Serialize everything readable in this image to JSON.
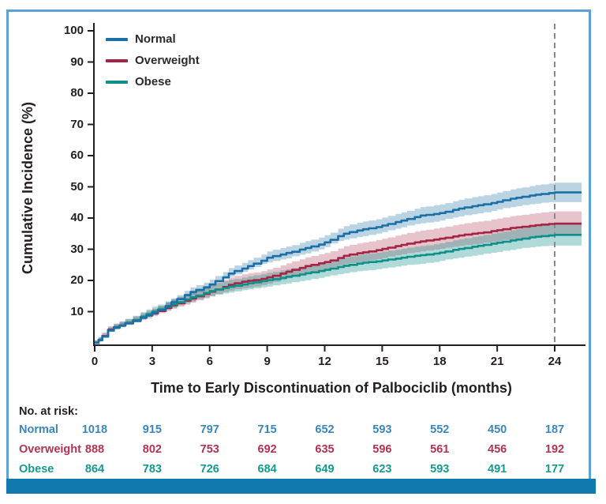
{
  "figure": {
    "border_color": "#5ba3d6",
    "bottom_bar_color": "#1179ad",
    "background": "#ffffff",
    "axis_color": "#231f20",
    "dashed_line_color": "#8a8a8a"
  },
  "chart_data": {
    "type": "line",
    "subtype": "cumulative-incidence-step-curves-with-confidence-bands",
    "title": "",
    "xlabel": "Time to Early Discontinuation of Palbociclib (months)",
    "ylabel": "Cumulative Incidence (%)",
    "xlim": [
      0,
      25.5
    ],
    "ylim": [
      0,
      100
    ],
    "xticks": [
      0,
      3,
      6,
      9,
      12,
      15,
      18,
      21,
      24
    ],
    "yticks": [
      10,
      20,
      30,
      40,
      50,
      60,
      70,
      80,
      90,
      100
    ],
    "grid": false,
    "legend_position": "top-left",
    "reference_line_x": 24,
    "series": [
      {
        "name": "Normal",
        "color": "#1c6fa6",
        "text_color": "#3a86bb",
        "band_opacity": 0.3,
        "band_base": 0.6,
        "band_slope": 0.052,
        "points": [
          [
            0,
            0
          ],
          [
            0.2,
            0.8
          ],
          [
            0.4,
            2
          ],
          [
            0.7,
            4
          ],
          [
            1,
            5
          ],
          [
            1.3,
            5.5
          ],
          [
            1.6,
            6.2
          ],
          [
            2,
            7
          ],
          [
            2.4,
            8
          ],
          [
            2.7,
            8.7
          ],
          [
            3,
            9.6
          ],
          [
            3.3,
            10.5
          ],
          [
            3.7,
            11.8
          ],
          [
            4,
            13
          ],
          [
            4.3,
            14
          ],
          [
            4.7,
            15.3
          ],
          [
            5,
            16.3
          ],
          [
            5.3,
            17
          ],
          [
            5.7,
            17.8
          ],
          [
            6,
            18.7
          ],
          [
            6.3,
            19.8
          ],
          [
            6.7,
            21
          ],
          [
            7,
            22.2
          ],
          [
            7.3,
            23
          ],
          [
            7.7,
            23.8
          ],
          [
            8,
            24.6
          ],
          [
            8.3,
            25.4
          ],
          [
            8.7,
            26.3
          ],
          [
            9,
            27.3
          ],
          [
            9.3,
            27.8
          ],
          [
            9.7,
            28.3
          ],
          [
            10,
            28.8
          ],
          [
            10.3,
            29.2
          ],
          [
            10.7,
            29.9
          ],
          [
            11,
            30.4
          ],
          [
            11.3,
            30.9
          ],
          [
            11.7,
            31.5
          ],
          [
            12,
            32.2
          ],
          [
            12.3,
            33
          ],
          [
            12.7,
            34.2
          ],
          [
            13,
            35
          ],
          [
            13.3,
            35.5
          ],
          [
            13.7,
            36
          ],
          [
            14,
            36.4
          ],
          [
            14.3,
            36.7
          ],
          [
            14.7,
            37.1
          ],
          [
            15,
            37.6
          ],
          [
            15.3,
            38.1
          ],
          [
            15.7,
            38.7
          ],
          [
            16,
            39.2
          ],
          [
            16.3,
            39.7
          ],
          [
            16.7,
            40.3
          ],
          [
            17,
            40.8
          ],
          [
            17.3,
            41
          ],
          [
            17.7,
            41.3
          ],
          [
            18,
            41.6
          ],
          [
            18.3,
            42
          ],
          [
            18.7,
            42.6
          ],
          [
            19,
            43
          ],
          [
            19.3,
            43.4
          ],
          [
            19.7,
            43.8
          ],
          [
            20,
            44.1
          ],
          [
            20.3,
            44.4
          ],
          [
            20.7,
            44.8
          ],
          [
            21,
            45.2
          ],
          [
            21.3,
            45.7
          ],
          [
            21.7,
            46.2
          ],
          [
            22,
            46.5
          ],
          [
            22.3,
            46.8
          ],
          [
            22.7,
            47.2
          ],
          [
            23,
            47.5
          ],
          [
            23.3,
            47.7
          ],
          [
            23.7,
            48
          ],
          [
            24,
            48.2
          ],
          [
            25.4,
            48.2
          ]
        ]
      },
      {
        "name": "Overweight",
        "color": "#a52444",
        "text_color": "#b13251",
        "band_opacity": 0.27,
        "band_base": 0.8,
        "band_slope": 0.082,
        "points": [
          [
            0,
            0
          ],
          [
            0.2,
            1
          ],
          [
            0.4,
            2.3
          ],
          [
            0.7,
            4.2
          ],
          [
            1,
            5
          ],
          [
            1.3,
            5.6
          ],
          [
            1.6,
            6.3
          ],
          [
            2,
            7.1
          ],
          [
            2.4,
            8.1
          ],
          [
            2.7,
            8.8
          ],
          [
            3,
            9.4
          ],
          [
            3.3,
            10.2
          ],
          [
            3.7,
            11.2
          ],
          [
            4,
            12
          ],
          [
            4.3,
            12.7
          ],
          [
            4.7,
            13.5
          ],
          [
            5,
            14.2
          ],
          [
            5.3,
            14.9
          ],
          [
            5.7,
            15.7
          ],
          [
            6,
            16.4
          ],
          [
            6.3,
            17.1
          ],
          [
            6.7,
            17.9
          ],
          [
            7,
            18.6
          ],
          [
            7.3,
            19.1
          ],
          [
            7.7,
            19.6
          ],
          [
            8,
            19.9
          ],
          [
            8.3,
            20.1
          ],
          [
            8.7,
            20.5
          ],
          [
            9,
            21
          ],
          [
            9.3,
            21.5
          ],
          [
            9.7,
            22.2
          ],
          [
            10,
            22.8
          ],
          [
            10.3,
            23.4
          ],
          [
            10.7,
            24
          ],
          [
            11,
            24.6
          ],
          [
            11.3,
            25
          ],
          [
            11.7,
            25.5
          ],
          [
            12,
            25.9
          ],
          [
            12.3,
            26.4
          ],
          [
            12.7,
            27.2
          ],
          [
            13,
            27.9
          ],
          [
            13.3,
            28.3
          ],
          [
            13.7,
            28.7
          ],
          [
            14,
            29
          ],
          [
            14.3,
            29.3
          ],
          [
            14.7,
            29.7
          ],
          [
            15,
            30.1
          ],
          [
            15.3,
            30.5
          ],
          [
            15.7,
            31
          ],
          [
            16,
            31.4
          ],
          [
            16.3,
            31.8
          ],
          [
            16.7,
            32.2
          ],
          [
            17,
            32.5
          ],
          [
            17.3,
            32.8
          ],
          [
            17.7,
            33.1
          ],
          [
            18,
            33.4
          ],
          [
            18.3,
            33.7
          ],
          [
            18.7,
            34.1
          ],
          [
            19,
            34.4
          ],
          [
            19.3,
            34.7
          ],
          [
            19.7,
            35
          ],
          [
            20,
            35.2
          ],
          [
            20.3,
            35.4
          ],
          [
            20.7,
            35.8
          ],
          [
            21,
            36.1
          ],
          [
            21.3,
            36.4
          ],
          [
            21.7,
            36.8
          ],
          [
            22,
            37
          ],
          [
            22.3,
            37.2
          ],
          [
            22.7,
            37.5
          ],
          [
            23,
            37.7
          ],
          [
            23.3,
            37.9
          ],
          [
            23.7,
            38.1
          ],
          [
            24,
            38.2
          ],
          [
            25.4,
            38.2
          ]
        ]
      },
      {
        "name": "Obese",
        "color": "#0d9089",
        "text_color": "#14998f",
        "band_opacity": 0.33,
        "band_base": 0.8,
        "band_slope": 0.076,
        "points": [
          [
            0,
            0
          ],
          [
            0.2,
            0.9
          ],
          [
            0.4,
            2
          ],
          [
            0.7,
            3.9
          ],
          [
            1,
            4.8
          ],
          [
            1.3,
            5.6
          ],
          [
            1.6,
            6.4
          ],
          [
            2,
            7.3
          ],
          [
            2.4,
            8.4
          ],
          [
            2.7,
            9.2
          ],
          [
            3,
            10
          ],
          [
            3.3,
            10.7
          ],
          [
            3.7,
            11.6
          ],
          [
            4,
            12.3
          ],
          [
            4.3,
            13
          ],
          [
            4.7,
            13.9
          ],
          [
            5,
            14.6
          ],
          [
            5.3,
            15.2
          ],
          [
            5.7,
            16
          ],
          [
            6,
            16.6
          ],
          [
            6.3,
            17.1
          ],
          [
            6.7,
            17.6
          ],
          [
            7,
            18
          ],
          [
            7.3,
            18.3
          ],
          [
            7.7,
            18.7
          ],
          [
            8,
            19.1
          ],
          [
            8.3,
            19.4
          ],
          [
            8.7,
            19.8
          ],
          [
            9,
            20.1
          ],
          [
            9.3,
            20.4
          ],
          [
            9.7,
            20.8
          ],
          [
            10,
            21.2
          ],
          [
            10.3,
            21.5
          ],
          [
            10.7,
            21.9
          ],
          [
            11,
            22.3
          ],
          [
            11.3,
            22.6
          ],
          [
            11.7,
            23
          ],
          [
            12,
            23.4
          ],
          [
            12.3,
            23.8
          ],
          [
            12.7,
            24.3
          ],
          [
            13,
            24.7
          ],
          [
            13.3,
            25
          ],
          [
            13.7,
            25.4
          ],
          [
            14,
            25.7
          ],
          [
            14.3,
            25.9
          ],
          [
            14.7,
            26.1
          ],
          [
            15,
            26.4
          ],
          [
            15.3,
            26.7
          ],
          [
            15.7,
            27
          ],
          [
            16,
            27.3
          ],
          [
            16.3,
            27.6
          ],
          [
            16.7,
            27.9
          ],
          [
            17,
            28.1
          ],
          [
            17.3,
            28.3
          ],
          [
            17.7,
            28.6
          ],
          [
            18,
            28.9
          ],
          [
            18.3,
            29.3
          ],
          [
            18.7,
            29.8
          ],
          [
            19,
            30.1
          ],
          [
            19.3,
            30.4
          ],
          [
            19.7,
            30.8
          ],
          [
            20,
            31.1
          ],
          [
            20.3,
            31.4
          ],
          [
            20.7,
            31.8
          ],
          [
            21,
            32.1
          ],
          [
            21.3,
            32.4
          ],
          [
            21.7,
            32.8
          ],
          [
            22,
            33.1
          ],
          [
            22.3,
            33.4
          ],
          [
            22.7,
            33.8
          ],
          [
            23,
            34
          ],
          [
            23.3,
            34.2
          ],
          [
            23.7,
            34.4
          ],
          [
            24,
            34.6
          ],
          [
            25.4,
            34.6
          ]
        ]
      }
    ]
  },
  "at_risk": {
    "label": "No. at risk:",
    "times": [
      0,
      3,
      6,
      9,
      12,
      15,
      18,
      21,
      24
    ],
    "rows": [
      {
        "name": "Normal",
        "counts": [
          "1018",
          "915",
          "797",
          "715",
          "652",
          "593",
          "552",
          "450",
          "187"
        ]
      },
      {
        "name": "Overweight",
        "counts": [
          "888",
          "802",
          "753",
          "692",
          "635",
          "596",
          "561",
          "456",
          "192"
        ]
      },
      {
        "name": "Obese",
        "counts": [
          "864",
          "783",
          "726",
          "684",
          "649",
          "623",
          "593",
          "491",
          "177"
        ]
      }
    ]
  }
}
